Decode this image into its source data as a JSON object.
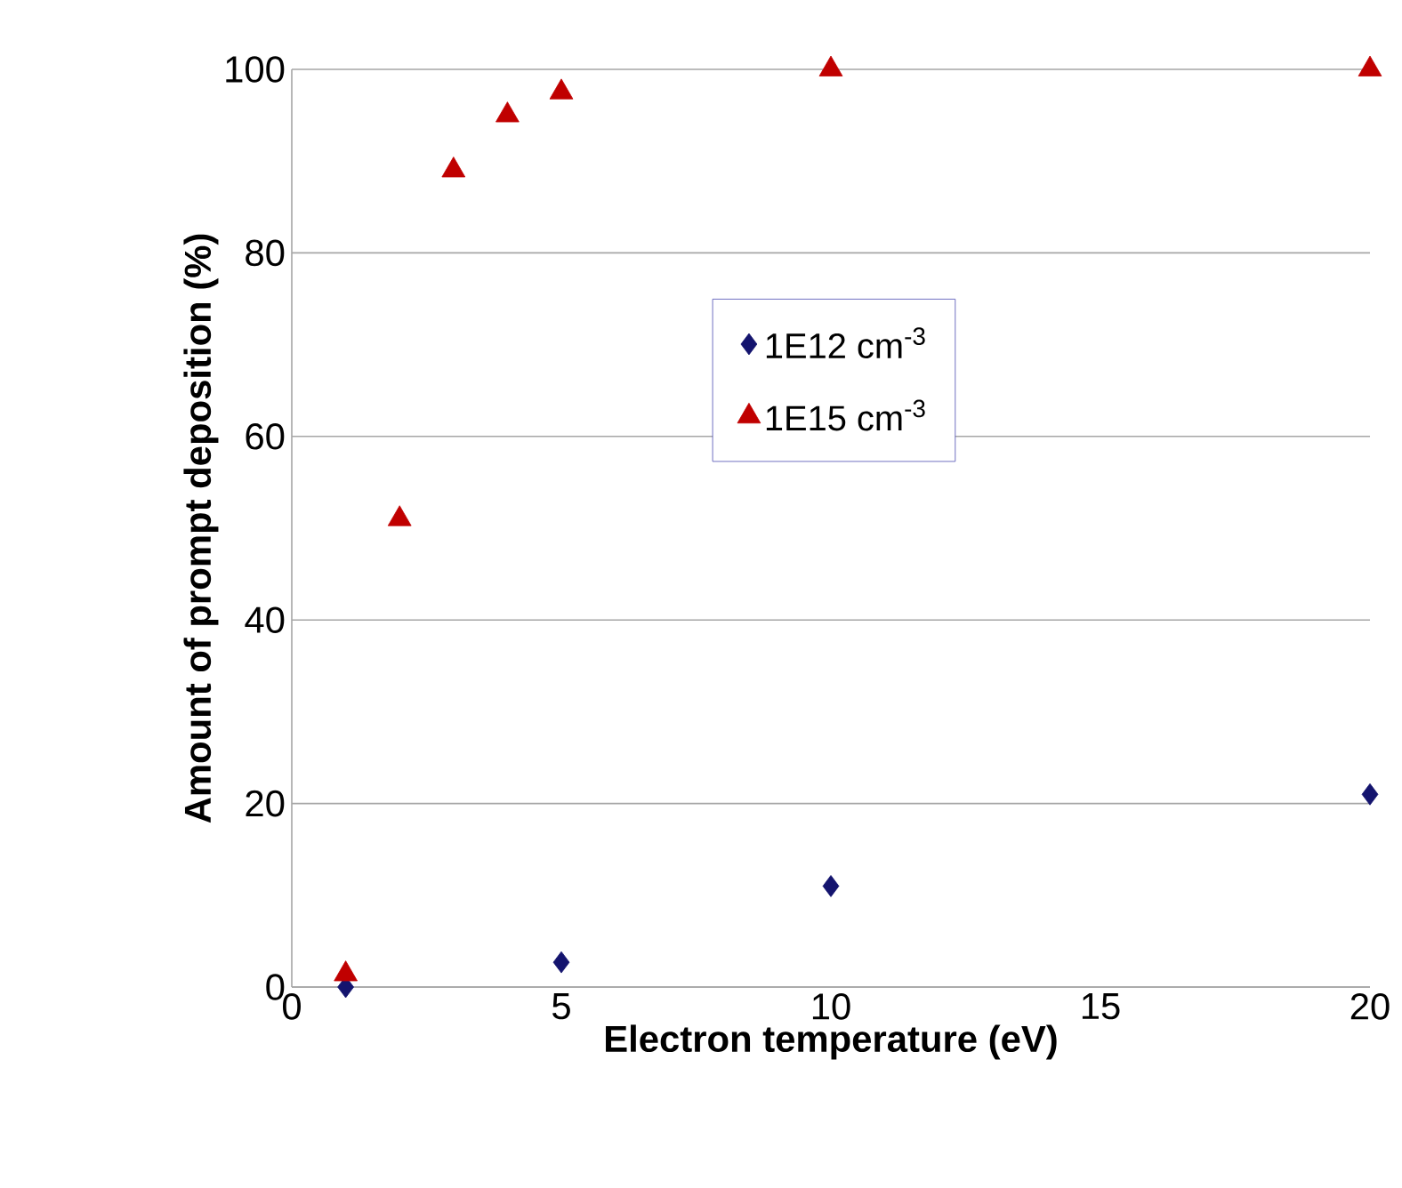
{
  "chart_data": {
    "type": "scatter",
    "xlabel": "Electron temperature (eV)",
    "ylabel": "Amount of prompt deposition (%)",
    "xlim": [
      0,
      20
    ],
    "xticks": [
      0,
      5,
      10,
      15,
      20
    ],
    "ylim": [
      0,
      100
    ],
    "yticks": [
      0,
      20,
      40,
      60,
      80,
      100
    ],
    "grid": "y",
    "legend": "right",
    "series": [
      {
        "name": "1E12 cm$^{-3}$",
        "color": "#14146e",
        "marker": "diamond",
        "x": [
          1,
          5,
          10,
          20
        ],
        "values": [
          0,
          2.7,
          11,
          21
        ]
      },
      {
        "name": "1E15 cm$^{-3}$",
        "color": "#c00000",
        "marker": "triangle",
        "x": [
          1,
          2,
          3,
          4,
          5,
          10,
          20
        ],
        "values": [
          1.4,
          51,
          89,
          95,
          97.5,
          100,
          100
        ]
      }
    ]
  }
}
